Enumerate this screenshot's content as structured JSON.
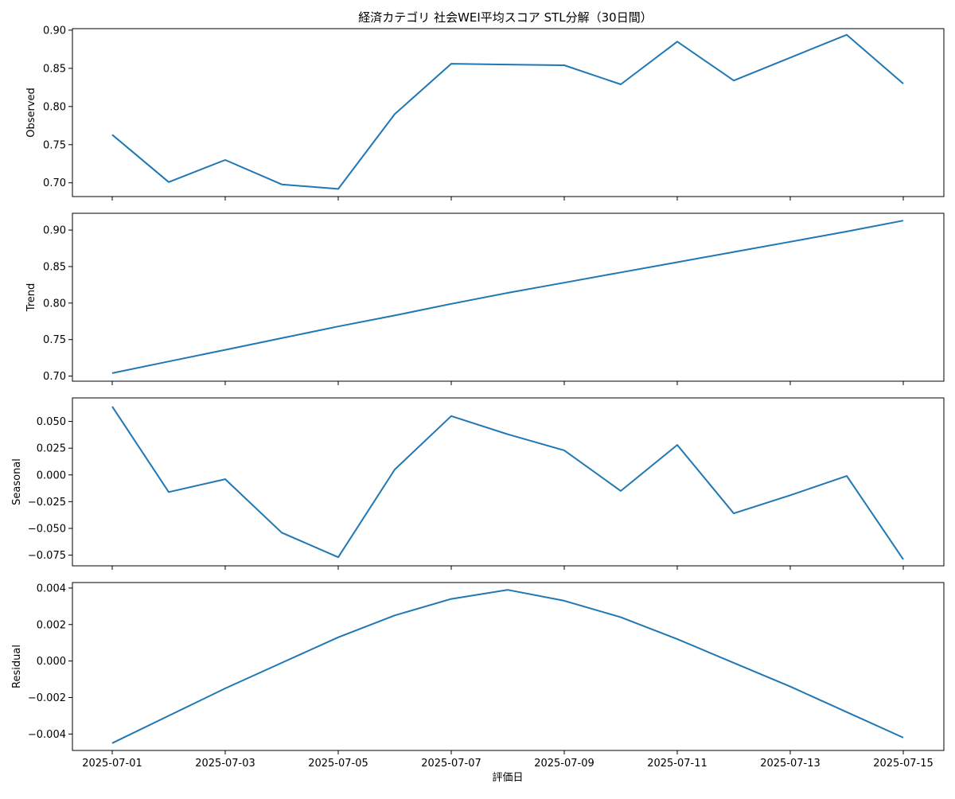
{
  "chart_data": {
    "type": "line",
    "title": "経済カテゴリ 社会WEI平均スコア STL分解（30日間）",
    "xlabel": "評価日",
    "x": [
      "2025-07-01",
      "2025-07-02",
      "2025-07-03",
      "2025-07-04",
      "2025-07-05",
      "2025-07-06",
      "2025-07-07",
      "2025-07-08",
      "2025-07-09",
      "2025-07-10",
      "2025-07-11",
      "2025-07-12",
      "2025-07-13",
      "2025-07-14",
      "2025-07-15"
    ],
    "xticks": [
      "2025-07-01",
      "2025-07-03",
      "2025-07-05",
      "2025-07-07",
      "2025-07-09",
      "2025-07-11",
      "2025-07-13",
      "2025-07-15"
    ],
    "line_color": "#1f77b4",
    "panels": [
      {
        "ylabel": "Observed",
        "ylim": [
          0.682,
          0.902
        ],
        "yticks": [
          "0.70",
          "0.75",
          "0.80",
          "0.85",
          "0.90"
        ],
        "values": [
          0.763,
          0.701,
          0.73,
          0.698,
          0.692,
          0.79,
          0.856,
          0.855,
          0.854,
          0.829,
          0.885,
          0.834,
          0.864,
          0.894,
          0.83
        ]
      },
      {
        "ylabel": "Trend",
        "ylim": [
          0.693,
          0.923
        ],
        "yticks": [
          "0.70",
          "0.75",
          "0.80",
          "0.85",
          "0.90"
        ],
        "values": [
          0.704,
          0.72,
          0.736,
          0.752,
          0.768,
          0.783,
          0.799,
          0.814,
          0.828,
          0.842,
          0.856,
          0.87,
          0.884,
          0.898,
          0.913
        ]
      },
      {
        "ylabel": "Seasonal",
        "ylim": [
          -0.085,
          0.072
        ],
        "yticks": [
          "−0.075",
          "−0.050",
          "−0.025",
          "0.000",
          "0.025",
          "0.050"
        ],
        "values": [
          0.064,
          -0.016,
          -0.004,
          -0.054,
          -0.077,
          0.005,
          0.055,
          0.038,
          0.023,
          -0.015,
          0.028,
          -0.036,
          -0.019,
          -0.001,
          -0.079
        ]
      },
      {
        "ylabel": "Residual",
        "ylim": [
          -0.0049,
          0.0043
        ],
        "yticks": [
          "−0.004",
          "−0.002",
          "0.000",
          "0.002",
          "0.004"
        ],
        "values": [
          -0.0045,
          -0.003,
          -0.0015,
          -0.0001,
          0.0013,
          0.0025,
          0.0034,
          0.0039,
          0.0033,
          0.0024,
          0.0012,
          -0.0001,
          -0.0014,
          -0.0028,
          -0.0042
        ]
      }
    ]
  }
}
